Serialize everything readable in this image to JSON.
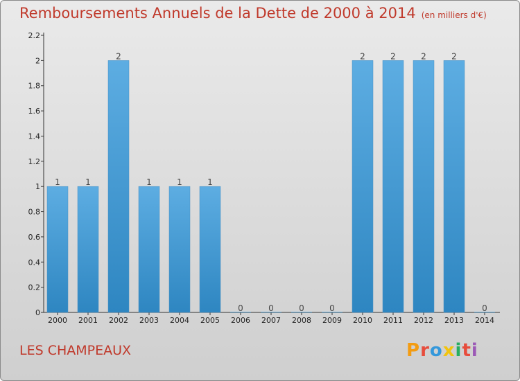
{
  "title": "Remboursements Annuels de la Dette de 2000 à 2014",
  "subtitle": "(en milliers d'€)",
  "commune": "LES CHAMPEAUX",
  "brand": "Proxiti",
  "colors": {
    "title": "#c0392b",
    "bar_top": "#5dade2",
    "bar_bottom": "#2e86c1",
    "brand_letters": [
      "#f39c12",
      "#e74c3c",
      "#3498db",
      "#f1c40f",
      "#27ae60",
      "#e74c3c",
      "#9b59b6"
    ]
  },
  "chart_data": {
    "type": "bar",
    "categories": [
      "2000",
      "2001",
      "2002",
      "2003",
      "2004",
      "2005",
      "2006",
      "2007",
      "2008",
      "2009",
      "2010",
      "2011",
      "2012",
      "2013",
      "2014"
    ],
    "values": [
      1,
      1,
      2,
      1,
      1,
      1,
      0,
      0,
      0,
      0,
      2,
      2,
      2,
      2,
      0
    ],
    "value_labels": [
      "1",
      "1",
      "2",
      "1",
      "1",
      "1",
      "0",
      "0",
      "0",
      "0",
      "2",
      "2",
      "2",
      "2",
      "0"
    ],
    "y_ticks": [
      "0",
      "0.2",
      "0.4",
      "0.6",
      "0.8",
      "1",
      "1.2",
      "1.4",
      "1.6",
      "1.8",
      "2",
      "2.2"
    ],
    "ylim": [
      0,
      2.2
    ],
    "grid": false
  }
}
